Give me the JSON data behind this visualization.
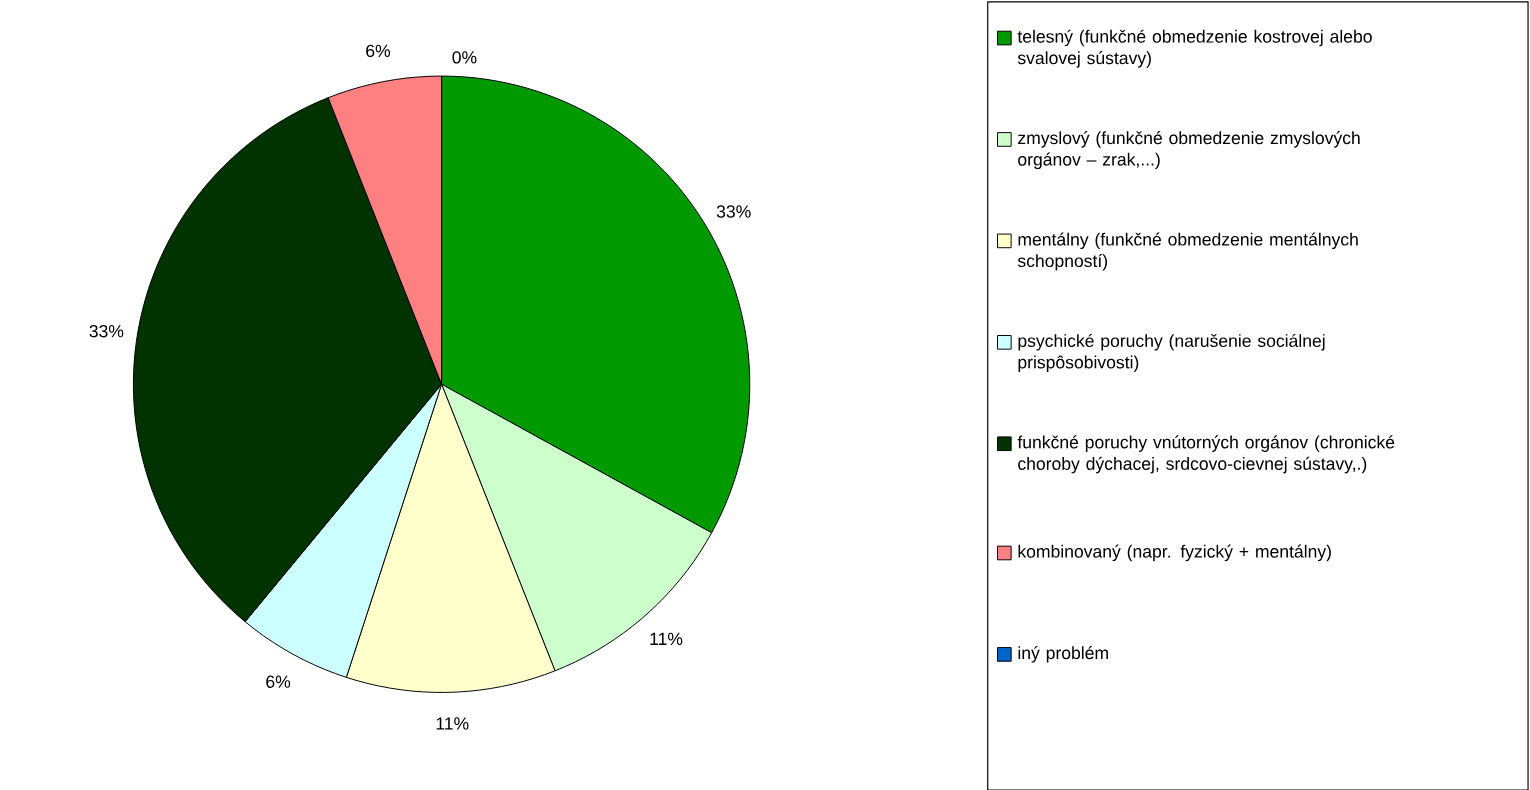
{
  "chart_data": {
    "type": "pie",
    "categories": [
      "telesný (funkčné obmedzenie kostrovej alebo svalovej sústavy)",
      "zmyslový (funkčné obmedzenie zmyslových orgánov – zrak,...)",
      "mentálny (funkčné obmedzenie mentálnych schopností)",
      "psychické poruchy (narušenie sociálnej prispôsobivosti)",
      "funkčné poruchy vnútorných orgánov (chronické choroby dýchacej, srdcovo-cievnej sústavy,.)",
      "kombinovaný (napr. fyzický + mentálny)",
      "iný problém"
    ],
    "values": [
      33,
      11,
      11,
      6,
      33,
      6,
      0
    ],
    "value_labels": [
      "33%",
      "11%",
      "11%",
      "6%",
      "33%",
      "6%",
      "0%"
    ],
    "colors": [
      "#009900",
      "#ccffcc",
      "#ffffcc",
      "#ccffff",
      "#003300",
      "#ff8080",
      "#0066cc"
    ],
    "legend": "right"
  }
}
